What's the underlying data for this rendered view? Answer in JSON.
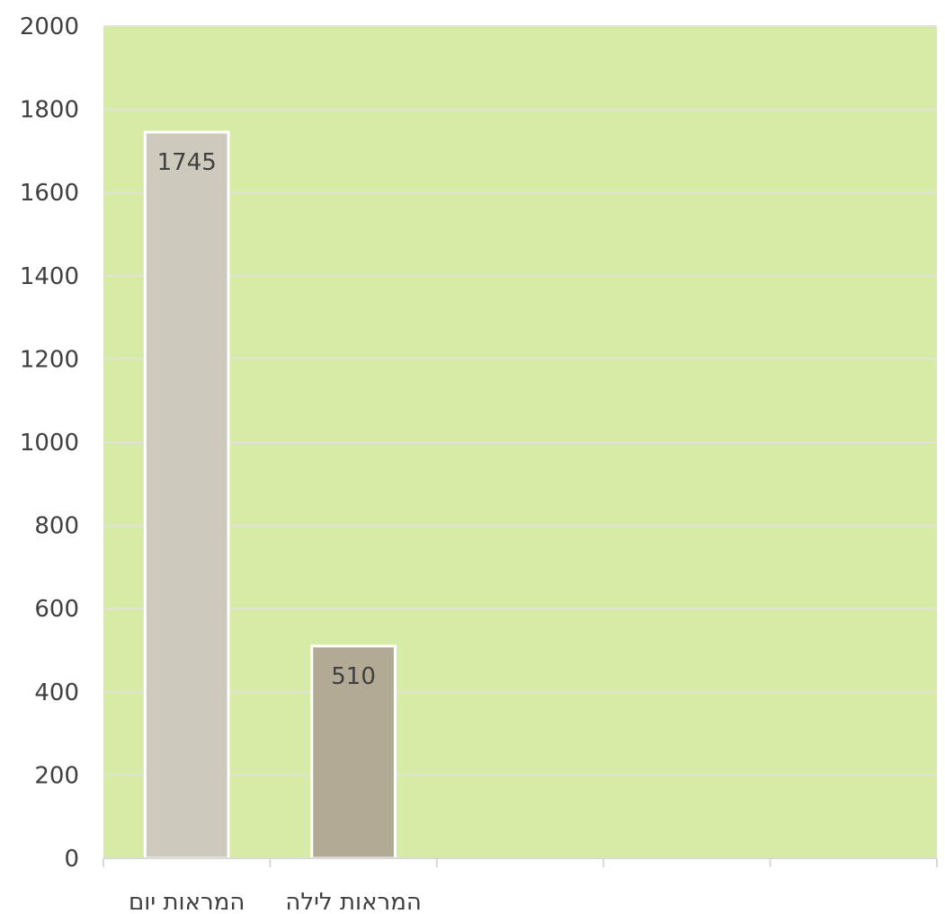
{
  "chart_data": {
    "type": "bar",
    "categories": [
      "המראות יום",
      "המראות לילה"
    ],
    "values": [
      1745,
      510
    ],
    "bar_colors": [
      "#cdc9bd",
      "#b2aa94"
    ],
    "bar_outline_color": "#ffffff",
    "plot_background": "#d6eca6",
    "gridline_color": "#e3e0d6",
    "ylim": [
      0,
      2000
    ],
    "y_ticks": [
      0,
      200,
      400,
      600,
      800,
      1000,
      1200,
      1400,
      1600,
      1800,
      2000
    ],
    "y_tick_labels": [
      "0",
      "200",
      "400",
      "600",
      "800",
      "1000",
      "1200",
      "1400",
      "1600",
      "1800",
      "2000"
    ],
    "data_labels": [
      "1745",
      "510"
    ],
    "category_slots": 5,
    "grid": true
  }
}
